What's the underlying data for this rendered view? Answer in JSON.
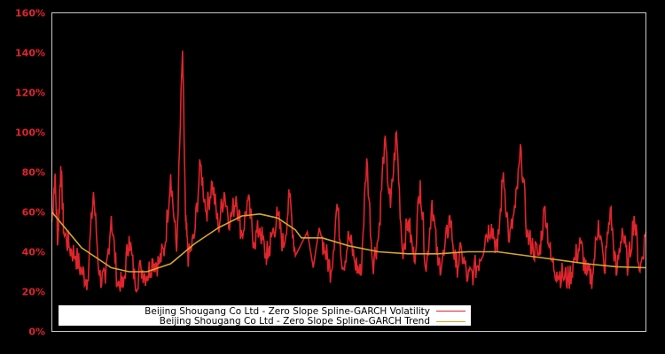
{
  "chart_data": {
    "type": "line",
    "title": "",
    "xlabel": "",
    "ylabel": "",
    "ylim": [
      0,
      160
    ],
    "y_tick_labels": [
      "0%",
      "20%",
      "40%",
      "60%",
      "80%",
      "100%",
      "120%",
      "140%",
      "160%"
    ],
    "y_ticks": [
      0,
      20,
      40,
      60,
      80,
      100,
      120,
      140,
      160
    ],
    "x_tick_labels": [],
    "grid": false,
    "legend_position": "lower-left inside",
    "background": "#000000",
    "axis_color": "#c8c8c8",
    "tick_label_color": "#e0242c",
    "series": [
      {
        "name": "Beijing Shougang Co Ltd - Zero Slope Spline-GARCH Volatility",
        "color": "#e0242c",
        "x_norm": [
          0.0,
          0.005,
          0.01,
          0.015,
          0.02,
          0.03,
          0.04,
          0.05,
          0.06,
          0.07,
          0.08,
          0.09,
          0.1,
          0.11,
          0.12,
          0.13,
          0.14,
          0.15,
          0.16,
          0.17,
          0.18,
          0.19,
          0.2,
          0.21,
          0.22,
          0.225,
          0.23,
          0.24,
          0.25,
          0.26,
          0.27,
          0.28,
          0.29,
          0.3,
          0.31,
          0.32,
          0.33,
          0.34,
          0.35,
          0.36,
          0.365,
          0.37,
          0.38,
          0.39,
          0.4,
          0.41,
          0.42,
          0.43,
          0.44,
          0.45,
          0.46,
          0.47,
          0.48,
          0.49,
          0.5,
          0.51,
          0.52,
          0.53,
          0.54,
          0.55,
          0.56,
          0.57,
          0.58,
          0.59,
          0.6,
          0.61,
          0.62,
          0.63,
          0.64,
          0.65,
          0.66,
          0.67,
          0.68,
          0.69,
          0.7,
          0.71,
          0.72,
          0.73,
          0.74,
          0.75,
          0.76,
          0.77,
          0.78,
          0.79,
          0.8,
          0.81,
          0.82,
          0.83,
          0.84,
          0.85,
          0.86,
          0.87,
          0.88,
          0.89,
          0.9,
          0.91,
          0.92,
          0.93,
          0.94,
          0.95,
          0.96,
          0.97,
          0.98,
          0.99,
          1.0
        ],
        "values": [
          55,
          78,
          45,
          83,
          50,
          42,
          38,
          30,
          26,
          70,
          28,
          24,
          58,
          25,
          22,
          48,
          24,
          32,
          28,
          36,
          34,
          42,
          79,
          40,
          141,
          55,
          36,
          48,
          84,
          60,
          75,
          52,
          70,
          55,
          68,
          48,
          66,
          45,
          52,
          38,
          40,
          48,
          58,
          42,
          68,
          38,
          44,
          50,
          32,
          52,
          40,
          30,
          64,
          32,
          48,
          35,
          28,
          87,
          34,
          48,
          96,
          62,
          100,
          40,
          56,
          35,
          76,
          30,
          66,
          33,
          38,
          58,
          32,
          40,
          26,
          30,
          36,
          48,
          54,
          40,
          80,
          45,
          62,
          91,
          48,
          42,
          38,
          63,
          36,
          30,
          28,
          26,
          36,
          44,
          28,
          28,
          56,
          30,
          62,
          28,
          52,
          32,
          58,
          30,
          50
        ]
      },
      {
        "name": "Beijing Shougang Co Ltd - Zero Slope Spline-GARCH Trend",
        "color": "#d4a82a",
        "x_norm": [
          0.0,
          0.05,
          0.1,
          0.13,
          0.16,
          0.2,
          0.24,
          0.28,
          0.32,
          0.35,
          0.38,
          0.41,
          0.42,
          0.455,
          0.5,
          0.55,
          0.6,
          0.65,
          0.7,
          0.75,
          0.8,
          0.85,
          0.9,
          0.95,
          1.0
        ],
        "values": [
          60,
          42,
          32,
          30,
          30,
          34,
          44,
          52,
          58,
          59,
          57,
          51,
          47,
          47,
          43,
          40,
          39,
          39,
          40,
          40,
          38,
          36,
          34,
          32.5,
          32
        ]
      }
    ]
  },
  "legend": {
    "items": [
      {
        "label": "Beijing Shougang Co Ltd - Zero Slope Spline-GARCH Volatility",
        "color": "#e0242c"
      },
      {
        "label": "Beijing Shougang Co Ltd - Zero Slope Spline-GARCH Trend",
        "color": "#d4a82a"
      }
    ]
  }
}
